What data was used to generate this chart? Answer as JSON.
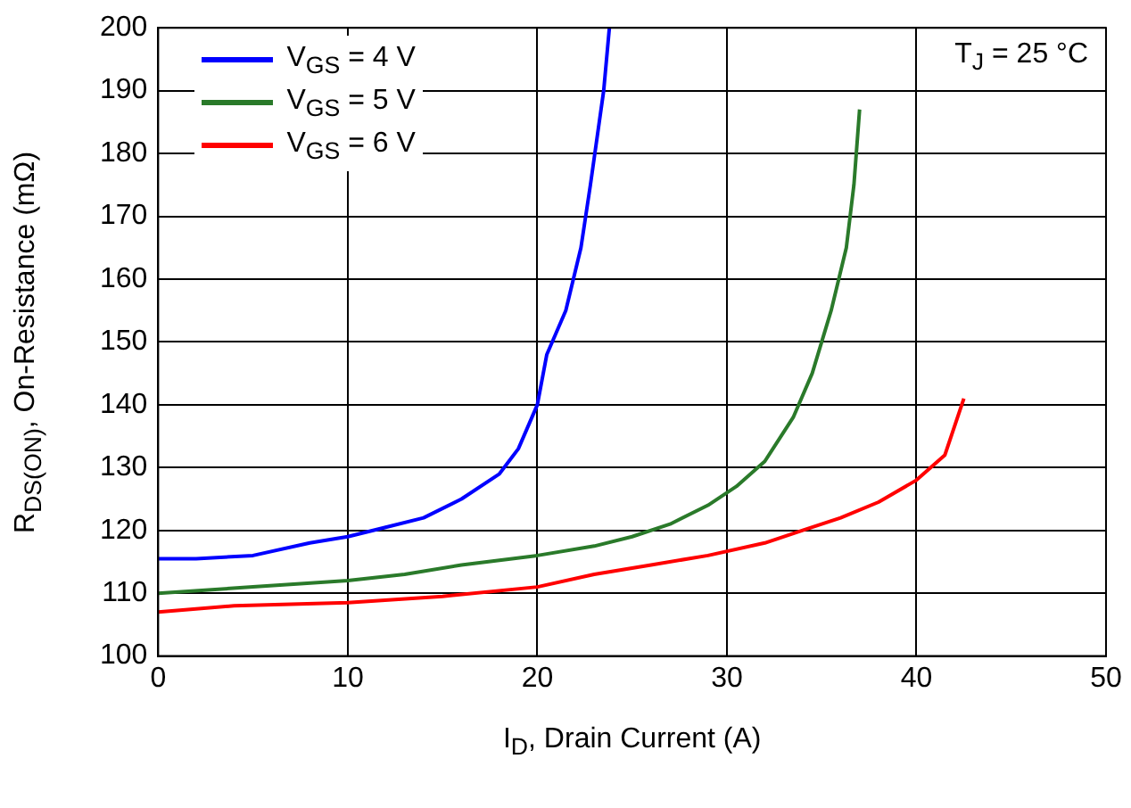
{
  "chart_data": {
    "type": "line",
    "xlabel": "I$_{D}$, Drain Current (A)",
    "ylabel": "R$_{DS(ON)}$, On-Resistance (mΩ)",
    "annotations": [
      "T$_{J}$ = 25 °C"
    ],
    "xlim": [
      0,
      50
    ],
    "xticks": [
      0,
      10,
      20,
      30,
      40,
      50
    ],
    "ylim": [
      100,
      200
    ],
    "yticks": [
      100,
      110,
      120,
      130,
      140,
      150,
      160,
      170,
      180,
      190,
      200
    ],
    "grid": true,
    "legend": "top left",
    "series": [
      {
        "name": "V$_{GS}$ = 4 V",
        "color": "#0000ff",
        "x": [
          0,
          2,
          5,
          8,
          10,
          12,
          14,
          16,
          18,
          19,
          20,
          20.5,
          21.5,
          22.3,
          22.8,
          23.5,
          23.8
        ],
        "values": [
          115.5,
          115.5,
          116,
          118,
          119,
          120.5,
          122,
          125,
          129,
          133,
          140,
          148,
          155,
          165,
          175,
          190,
          200
        ]
      },
      {
        "name": "V$_{GS}$ = 5 V",
        "color": "#2a7a2a",
        "x": [
          0,
          5,
          10,
          13,
          16,
          20,
          23,
          25,
          27,
          29,
          30.5,
          32,
          33.5,
          34.5,
          35.5,
          36.3,
          36.7,
          37
        ],
        "values": [
          110,
          111,
          112,
          113,
          114.5,
          116,
          117.5,
          119,
          121,
          124,
          127,
          131,
          138,
          145,
          155,
          165,
          175,
          187
        ]
      },
      {
        "name": "V$_{GS}$ = 6 V",
        "color": "#ff0000",
        "x": [
          0,
          4,
          10,
          15,
          20,
          23,
          26,
          29,
          32,
          34,
          36,
          38,
          40,
          41.5,
          42.5
        ],
        "values": [
          107,
          108,
          108.5,
          109.5,
          111,
          113,
          114.5,
          116,
          118,
          120,
          122,
          124.5,
          128,
          132,
          141
        ]
      }
    ]
  }
}
